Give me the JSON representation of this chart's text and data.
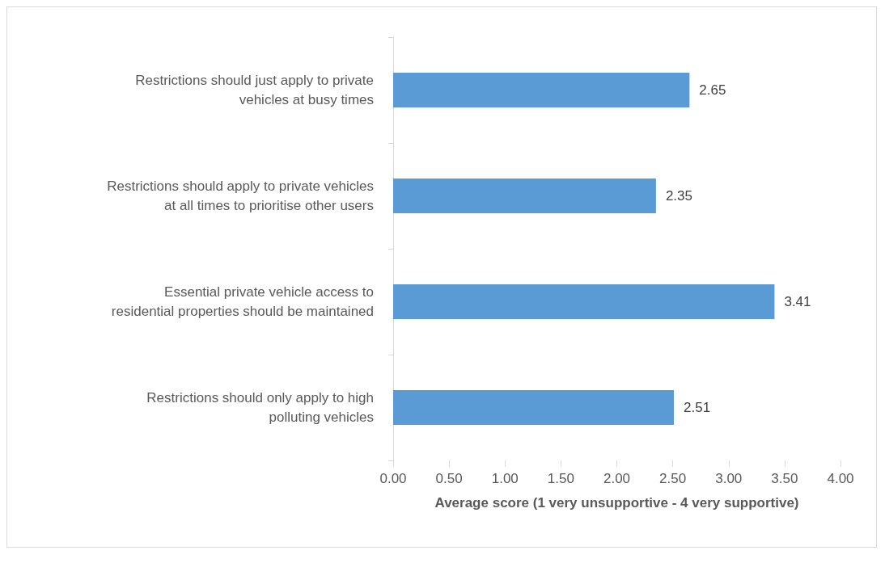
{
  "chart_data": {
    "type": "bar",
    "orientation": "horizontal",
    "xlabel": "Average score (1 very unsupportive - 4 very supportive)",
    "categories": [
      "Restrictions should just apply to private\nvehicles at busy times",
      "Restrictions should apply to private vehicles\nat all times to prioritise other users",
      "Essential private vehicle access to\nresidential properties should be maintained",
      "Restrictions should only apply to high\npolluting vehicles"
    ],
    "values": [
      2.65,
      2.35,
      3.41,
      2.51
    ],
    "value_labels": [
      "2.65",
      "2.35",
      "3.41",
      "2.51"
    ],
    "color": "#5b9bd5",
    "xlim": [
      0,
      4
    ],
    "xticks": [
      {
        "value": 0,
        "label": "0.00"
      },
      {
        "value": 0.5,
        "label": "0.50"
      },
      {
        "value": 1,
        "label": "1.00"
      },
      {
        "value": 1.5,
        "label": "1.50"
      },
      {
        "value": 2,
        "label": "2.00"
      },
      {
        "value": 2.5,
        "label": "2.50"
      },
      {
        "value": 3,
        "label": "3.00"
      },
      {
        "value": 3.5,
        "label": "3.50"
      },
      {
        "value": 4,
        "label": "4.00"
      }
    ],
    "grid": false
  }
}
